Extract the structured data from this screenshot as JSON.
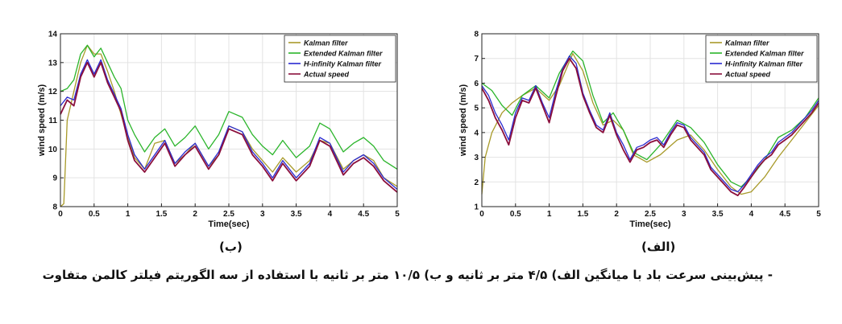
{
  "caption": "- پیش‌بینی سرعت باد با میانگین الف) ۴/۵ متر بر ثانیه و ب) ۱۰/۵ متر بر ثانیه با استفاده از سه الگوریتم فیلتر کالمن متفاوت",
  "panel_labels": {
    "left": "(ب)",
    "right": "(الف)"
  },
  "colors": {
    "kalman": "#a89a2a",
    "extended": "#2bb52b",
    "hinf": "#2a2ad0",
    "actual": "#8b0f3c"
  },
  "chart_data": [
    {
      "id": "left",
      "type": "line",
      "title": "",
      "xlabel": "Time(sec)",
      "ylabel": "wind speed (m/s)",
      "xlim": [
        0,
        5
      ],
      "ylim": [
        8,
        14
      ],
      "xticks": [
        0,
        0.5,
        1,
        1.5,
        2,
        2.5,
        3,
        3.5,
        4,
        4.5,
        5
      ],
      "xtick_labels": [
        "0",
        "0.5",
        "1",
        "1.5",
        "2",
        "2.5",
        "3",
        "3.5",
        "4",
        "4.5",
        "5"
      ],
      "yticks": [
        8,
        9,
        10,
        11,
        12,
        13,
        14
      ],
      "ytick_labels": [
        "8",
        "9",
        "10",
        "11",
        "12",
        "13",
        "14"
      ],
      "legend": "top-right",
      "series": [
        {
          "name": "Kalman filter",
          "key": "kalman",
          "x": [
            0,
            0.05,
            0.1,
            0.2,
            0.3,
            0.4,
            0.5,
            0.6,
            0.7,
            0.8,
            0.9,
            1.0,
            1.1,
            1.25,
            1.4,
            1.55,
            1.7,
            1.85,
            2.0,
            2.2,
            2.35,
            2.5,
            2.7,
            2.85,
            3.0,
            3.15,
            3.3,
            3.5,
            3.7,
            3.85,
            4.0,
            4.2,
            4.35,
            4.5,
            4.65,
            4.8,
            5.0
          ],
          "y": [
            8.0,
            8.1,
            11.0,
            12.0,
            13.0,
            13.6,
            13.3,
            13.3,
            12.7,
            12.0,
            11.2,
            10.4,
            9.7,
            9.3,
            10.2,
            10.3,
            9.5,
            9.8,
            10.2,
            9.4,
            9.8,
            10.8,
            10.6,
            10.0,
            9.6,
            9.2,
            9.7,
            9.2,
            9.6,
            10.3,
            10.2,
            9.3,
            9.6,
            9.8,
            9.6,
            9.0,
            8.7
          ]
        },
        {
          "name": "Extended Kalman filter",
          "key": "extended",
          "x": [
            0,
            0.1,
            0.2,
            0.3,
            0.4,
            0.5,
            0.6,
            0.7,
            0.8,
            0.9,
            1.0,
            1.1,
            1.25,
            1.4,
            1.55,
            1.7,
            1.85,
            2.0,
            2.2,
            2.35,
            2.5,
            2.7,
            2.85,
            3.0,
            3.15,
            3.3,
            3.5,
            3.7,
            3.85,
            4.0,
            4.2,
            4.35,
            4.5,
            4.65,
            4.8,
            5.0
          ],
          "y": [
            12.0,
            12.1,
            12.4,
            13.3,
            13.6,
            13.2,
            13.5,
            13.0,
            12.5,
            12.1,
            11.0,
            10.5,
            9.9,
            10.4,
            10.7,
            10.1,
            10.4,
            10.8,
            10.0,
            10.5,
            11.3,
            11.1,
            10.5,
            10.1,
            9.8,
            10.3,
            9.7,
            10.1,
            10.9,
            10.7,
            9.9,
            10.2,
            10.4,
            10.1,
            9.6,
            9.3
          ]
        },
        {
          "name": "H-infinity Kalman filter",
          "key": "hinf",
          "x": [
            0,
            0.1,
            0.2,
            0.3,
            0.4,
            0.5,
            0.6,
            0.7,
            0.8,
            0.9,
            1.0,
            1.1,
            1.25,
            1.4,
            1.55,
            1.7,
            1.85,
            2.0,
            2.2,
            2.35,
            2.5,
            2.7,
            2.85,
            3.0,
            3.15,
            3.3,
            3.5,
            3.7,
            3.85,
            4.0,
            4.2,
            4.35,
            4.5,
            4.65,
            4.8,
            5.0
          ],
          "y": [
            11.5,
            11.8,
            11.7,
            12.6,
            13.1,
            12.6,
            13.1,
            12.4,
            11.9,
            11.4,
            10.5,
            9.8,
            9.3,
            9.8,
            10.3,
            9.5,
            9.9,
            10.2,
            9.4,
            9.9,
            10.8,
            10.6,
            9.9,
            9.5,
            9.0,
            9.6,
            9.0,
            9.5,
            10.4,
            10.2,
            9.2,
            9.6,
            9.8,
            9.5,
            9.0,
            8.6
          ]
        },
        {
          "name": "Actual speed",
          "key": "actual",
          "x": [
            0,
            0.1,
            0.2,
            0.3,
            0.4,
            0.5,
            0.6,
            0.7,
            0.8,
            0.9,
            1.0,
            1.1,
            1.25,
            1.4,
            1.55,
            1.7,
            1.85,
            2.0,
            2.2,
            2.35,
            2.5,
            2.7,
            2.85,
            3.0,
            3.15,
            3.3,
            3.5,
            3.7,
            3.85,
            4.0,
            4.2,
            4.35,
            4.5,
            4.65,
            4.8,
            5.0
          ],
          "y": [
            11.2,
            11.7,
            11.5,
            12.5,
            13.0,
            12.5,
            13.0,
            12.3,
            11.8,
            11.3,
            10.3,
            9.6,
            9.2,
            9.7,
            10.2,
            9.4,
            9.8,
            10.1,
            9.3,
            9.8,
            10.7,
            10.5,
            9.8,
            9.4,
            8.9,
            9.5,
            8.9,
            9.4,
            10.3,
            10.1,
            9.1,
            9.5,
            9.7,
            9.4,
            8.9,
            8.5
          ]
        }
      ]
    },
    {
      "id": "right",
      "type": "line",
      "title": "",
      "xlabel": "Time(sec)",
      "ylabel": "wind speed (m/s)",
      "xlim": [
        0,
        5
      ],
      "ylim": [
        1,
        8
      ],
      "xticks": [
        0,
        0.5,
        1,
        1.5,
        2,
        2.5,
        3,
        3.5,
        4,
        4.5,
        5
      ],
      "xtick_labels": [
        "0",
        "0.5",
        "1",
        "1.5",
        "2",
        "2.5",
        "3",
        "3.5",
        "4",
        "4.5",
        "5"
      ],
      "yticks": [
        1,
        2,
        3,
        4,
        5,
        6,
        7,
        8
      ],
      "ytick_labels": [
        "1",
        "2",
        "3",
        "4",
        "5",
        "6",
        "7",
        "8"
      ],
      "legend": "top-right",
      "series": [
        {
          "name": "Kalman filter",
          "key": "kalman",
          "x": [
            0,
            0.05,
            0.15,
            0.3,
            0.45,
            0.6,
            0.8,
            1.0,
            1.15,
            1.35,
            1.5,
            1.65,
            1.8,
            1.95,
            2.1,
            2.25,
            2.45,
            2.65,
            2.9,
            3.1,
            3.3,
            3.5,
            3.7,
            3.85,
            4.0,
            4.2,
            4.4,
            4.6,
            4.8,
            5.0
          ],
          "y": [
            1.5,
            3.0,
            4.0,
            4.8,
            5.2,
            5.5,
            5.8,
            5.3,
            5.9,
            7.2,
            6.5,
            5.2,
            4.3,
            4.5,
            4.1,
            3.1,
            2.8,
            3.1,
            3.7,
            3.9,
            3.3,
            2.5,
            1.8,
            1.5,
            1.6,
            2.2,
            3.0,
            3.7,
            4.4,
            5.1
          ]
        },
        {
          "name": "Extended Kalman filter",
          "key": "extended",
          "x": [
            0,
            0.15,
            0.3,
            0.45,
            0.6,
            0.8,
            1.0,
            1.15,
            1.35,
            1.5,
            1.65,
            1.8,
            1.95,
            2.1,
            2.25,
            2.45,
            2.65,
            2.9,
            3.1,
            3.3,
            3.5,
            3.7,
            3.85,
            4.0,
            4.2,
            4.4,
            4.6,
            4.8,
            5.0
          ],
          "y": [
            6.0,
            5.7,
            5.1,
            4.7,
            5.5,
            5.9,
            5.4,
            6.4,
            7.3,
            6.9,
            5.5,
            4.4,
            4.8,
            4.1,
            3.2,
            2.9,
            3.5,
            4.5,
            4.2,
            3.6,
            2.7,
            2.0,
            1.8,
            2.2,
            2.9,
            3.8,
            4.1,
            4.6,
            5.4
          ]
        },
        {
          "name": "H-infinity Kalman filter",
          "key": "hinf",
          "x": [
            0,
            0.1,
            0.2,
            0.3,
            0.4,
            0.5,
            0.6,
            0.7,
            0.8,
            0.9,
            1.0,
            1.1,
            1.2,
            1.3,
            1.4,
            1.5,
            1.6,
            1.7,
            1.8,
            1.9,
            2.0,
            2.1,
            2.2,
            2.3,
            2.4,
            2.5,
            2.6,
            2.7,
            2.8,
            2.9,
            3.0,
            3.1,
            3.2,
            3.3,
            3.4,
            3.5,
            3.6,
            3.7,
            3.8,
            3.9,
            4.0,
            4.1,
            4.2,
            4.3,
            4.4,
            4.5,
            4.6,
            4.7,
            4.8,
            4.9,
            5.0
          ],
          "y": [
            5.9,
            5.5,
            4.8,
            4.3,
            3.7,
            4.8,
            5.4,
            5.3,
            5.9,
            5.2,
            4.6,
            5.7,
            6.6,
            7.1,
            6.8,
            5.6,
            4.9,
            4.3,
            4.1,
            4.8,
            4.0,
            3.5,
            2.9,
            3.4,
            3.5,
            3.7,
            3.8,
            3.5,
            4.0,
            4.4,
            4.3,
            3.8,
            3.5,
            3.2,
            2.6,
            2.3,
            2.0,
            1.7,
            1.6,
            1.9,
            2.3,
            2.7,
            3.0,
            3.2,
            3.6,
            3.8,
            4.0,
            4.3,
            4.6,
            4.9,
            5.3
          ]
        },
        {
          "name": "Actual speed",
          "key": "actual",
          "x": [
            0,
            0.1,
            0.2,
            0.3,
            0.4,
            0.5,
            0.6,
            0.7,
            0.8,
            0.9,
            1.0,
            1.1,
            1.2,
            1.3,
            1.4,
            1.5,
            1.6,
            1.7,
            1.8,
            1.9,
            2.0,
            2.1,
            2.2,
            2.3,
            2.4,
            2.5,
            2.6,
            2.7,
            2.8,
            2.9,
            3.0,
            3.1,
            3.2,
            3.3,
            3.4,
            3.5,
            3.6,
            3.7,
            3.8,
            3.9,
            4.0,
            4.1,
            4.2,
            4.3,
            4.4,
            4.5,
            4.6,
            4.7,
            4.8,
            4.9,
            5.0
          ],
          "y": [
            5.8,
            5.3,
            4.6,
            4.1,
            3.5,
            4.6,
            5.3,
            5.2,
            5.8,
            5.1,
            4.4,
            5.5,
            6.5,
            7.0,
            6.6,
            5.5,
            4.8,
            4.2,
            4.0,
            4.7,
            3.9,
            3.3,
            2.8,
            3.3,
            3.4,
            3.6,
            3.7,
            3.4,
            3.9,
            4.3,
            4.2,
            3.7,
            3.4,
            3.1,
            2.5,
            2.2,
            1.9,
            1.6,
            1.45,
            1.8,
            2.2,
            2.6,
            2.9,
            3.1,
            3.5,
            3.7,
            3.9,
            4.2,
            4.5,
            4.8,
            5.2
          ]
        }
      ]
    }
  ]
}
